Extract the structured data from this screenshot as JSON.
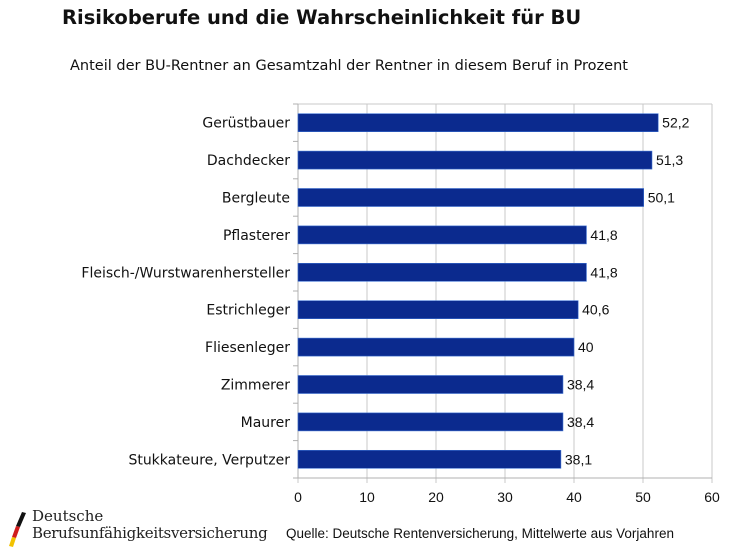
{
  "chart_data": {
    "type": "bar",
    "orientation": "horizontal",
    "title": "Risikoberufe und die Wahrscheinlichkeit für BU",
    "subtitle": "Anteil der BU-Rentner an Gesamtzahl der Rentner in diesem Beruf in Prozent",
    "categories": [
      "Gerüstbauer",
      "Dachdecker",
      "Bergleute",
      "Pflasterer",
      "Fleisch-/Wurstwarenhersteller",
      "Estrichleger",
      "Fliesenleger",
      "Zimmerer",
      "Maurer",
      "Stukkateure, Verputzer"
    ],
    "values": [
      52.2,
      51.3,
      50.1,
      41.8,
      41.8,
      40.6,
      40,
      38.4,
      38.4,
      38.1
    ],
    "value_labels": [
      "52,2",
      "51,3",
      "50,1",
      "41,8",
      "41,8",
      "40,6",
      "40",
      "38,4",
      "38,4",
      "38,1"
    ],
    "xlabel": "",
    "ylabel": "",
    "xlim": [
      0,
      60
    ],
    "xticks": [
      0,
      10,
      20,
      30,
      40,
      50,
      60
    ],
    "xtick_labels": [
      "0",
      "10",
      "20",
      "30",
      "40",
      "50",
      "60"
    ],
    "grid": true,
    "legend": "none",
    "bar_color": "#0b2a8e",
    "grid_color": "#c8c8c8"
  },
  "footer": {
    "logo_line1": "Deutsche",
    "logo_line2": "Berufsunfähigkeitsversicherung",
    "source": "Quelle: Deutsche Rentenversicherung, Mittelwerte aus Vorjahren"
  }
}
